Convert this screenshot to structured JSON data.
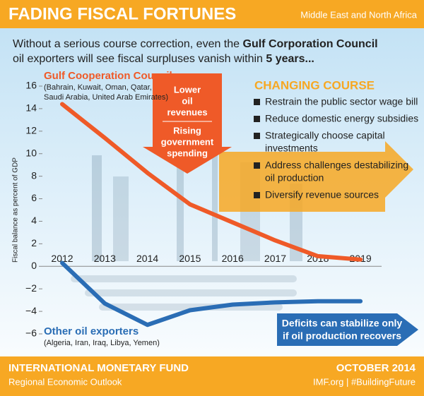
{
  "header": {
    "title": "FADING FISCAL FORTUNES",
    "region": "Middle East and North Africa",
    "subtitle": [
      [
        "Without a serious course correction, even the ",
        "Gulf Corporation Council"
      ],
      [
        "oil exporters will see fiscal surpluses vanish within ",
        "5 years..."
      ]
    ]
  },
  "chart_data": {
    "type": "line",
    "ylabel": "Fiscal balance as percent of GDP",
    "categories": [
      "2012",
      "2013",
      "2014",
      "2015",
      "2016",
      "2017",
      "2018",
      "2019"
    ],
    "ylim": [
      -7,
      16.5
    ],
    "yticks": [
      {
        "value": -6,
        "label": "−6"
      },
      {
        "value": -4,
        "label": "−4"
      },
      {
        "value": -2,
        "label": "−2"
      },
      0,
      2,
      4,
      6,
      8,
      10,
      12,
      14,
      16
    ],
    "series": [
      {
        "name": "Gulf Cooperation Council",
        "members": [
          "(Bahrain, Kuwait, Oman, Qatar,",
          "Saudi Arabia, United Arab Emirates)"
        ],
        "color": "#ef5a28",
        "values": [
          14.4,
          11.4,
          8.3,
          5.5,
          3.9,
          2.3,
          0.9,
          0.6
        ]
      },
      {
        "name": "Other oil exporters",
        "members": [
          "(Algeria, Iran, Iraq, Libya, Yemen)"
        ],
        "color": "#2a6db5",
        "values": [
          0.3,
          -3.3,
          -5.2,
          -3.9,
          -3.4,
          -3.2,
          -3.1,
          -3.1
        ]
      }
    ]
  },
  "callouts": {
    "down_arrow": [
      [
        "Lower",
        "oil",
        "revenues"
      ],
      [
        "Rising",
        "government",
        "spending"
      ]
    ],
    "changing_course": {
      "title": "CHANGING COURSE",
      "items": [
        [
          "Restrain the public sector wage bill"
        ],
        [
          "Reduce domestic energy subsidies"
        ],
        [
          "Strategically choose capital",
          "investments"
        ],
        [
          "Address challenges destabilizing",
          "oil production"
        ],
        [
          "Diversify revenue sources"
        ]
      ]
    },
    "deficits": [
      "Deficits can stabilize only",
      "if oil production recovers"
    ]
  },
  "footer": {
    "org": "INTERNATIONAL MONETARY FUND",
    "report": "Regional Economic Outlook",
    "date": "OCTOBER 2014",
    "links": "IMF.org | #BuildingFuture"
  }
}
